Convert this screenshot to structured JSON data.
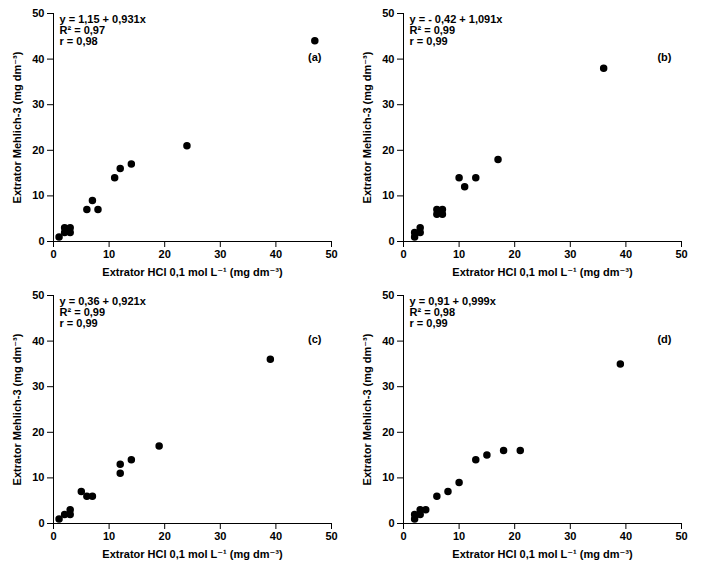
{
  "chart_data": [
    {
      "type": "scatter",
      "title": "(a)",
      "annotations": [
        "y = 1,15 + 0,931x",
        "R² = 0,97",
        "r = 0,98"
      ],
      "xlabel": "Extrator HCl 0,1 mol L⁻¹ (mg dm⁻³)",
      "ylabel": "Extrator Mehlich-3 (mg dm⁻³)",
      "x": [
        1,
        2,
        2,
        3,
        3,
        6,
        7,
        8,
        11,
        12,
        14,
        24,
        47
      ],
      "y": [
        1,
        2,
        3,
        2,
        3,
        7,
        9,
        7,
        14,
        16,
        17,
        21,
        44
      ],
      "color": "#000000",
      "marker": "circle",
      "xlim": [
        0,
        50
      ],
      "ylim": [
        0,
        50
      ],
      "xticks": [
        0,
        10,
        20,
        30,
        40,
        50
      ],
      "yticks": [
        0,
        10,
        20,
        30,
        40,
        50
      ],
      "grid": false
    },
    {
      "type": "scatter",
      "title": "(b)",
      "annotations": [
        "y = - 0,42 + 1,091x",
        "R² = 0,99",
        "r = 0,99"
      ],
      "xlabel": "Extrator HCl 0,1 mol L⁻¹ (mg dm⁻³)",
      "ylabel": "Extrator Mehlich-3 (mg dm⁻³)",
      "x": [
        2,
        2,
        3,
        3,
        6,
        6,
        7,
        7,
        10,
        11,
        13,
        17,
        36
      ],
      "y": [
        1,
        2,
        2,
        3,
        6,
        7,
        6,
        7,
        14,
        12,
        14,
        18,
        38
      ],
      "color": "#000000",
      "marker": "circle",
      "xlim": [
        0,
        50
      ],
      "ylim": [
        0,
        50
      ],
      "xticks": [
        0,
        10,
        20,
        30,
        40,
        50
      ],
      "yticks": [
        0,
        10,
        20,
        30,
        40,
        50
      ],
      "grid": false
    },
    {
      "type": "scatter",
      "title": "(c)",
      "annotations": [
        "y = 0,36 + 0,921x",
        "R² = 0,99",
        "r = 0,99"
      ],
      "xlabel": "Extrator HCl 0,1 mol L⁻¹ (mg dm⁻³)",
      "ylabel": "Extrator Mehlich-3 (mg dm⁻³)",
      "x": [
        1,
        2,
        3,
        3,
        5,
        6,
        7,
        12,
        12,
        14,
        19,
        39
      ],
      "y": [
        1,
        2,
        2,
        3,
        7,
        6,
        6,
        11,
        13,
        14,
        17,
        36
      ],
      "color": "#000000",
      "marker": "circle",
      "xlim": [
        0,
        50
      ],
      "ylim": [
        0,
        50
      ],
      "xticks": [
        0,
        10,
        20,
        30,
        40,
        50
      ],
      "yticks": [
        0,
        10,
        20,
        30,
        40,
        50
      ],
      "grid": false
    },
    {
      "type": "scatter",
      "title": "(d)",
      "annotations": [
        "y = 0,91 + 0,999x",
        "R² = 0,98",
        "r = 0,99"
      ],
      "xlabel": "Extrator HCl 0,1 mol L⁻¹ (mg dm⁻³)",
      "ylabel": "Extrator Mehlich-3 (mg dm⁻³)",
      "x": [
        2,
        2,
        3,
        3,
        4,
        6,
        8,
        10,
        13,
        15,
        18,
        21,
        39
      ],
      "y": [
        1,
        2,
        2,
        3,
        3,
        6,
        7,
        9,
        14,
        15,
        16,
        16,
        35
      ],
      "color": "#000000",
      "marker": "circle",
      "xlim": [
        0,
        50
      ],
      "ylim": [
        0,
        50
      ],
      "xticks": [
        0,
        10,
        20,
        30,
        40,
        50
      ],
      "yticks": [
        0,
        10,
        20,
        30,
        40,
        50
      ],
      "grid": false
    }
  ]
}
